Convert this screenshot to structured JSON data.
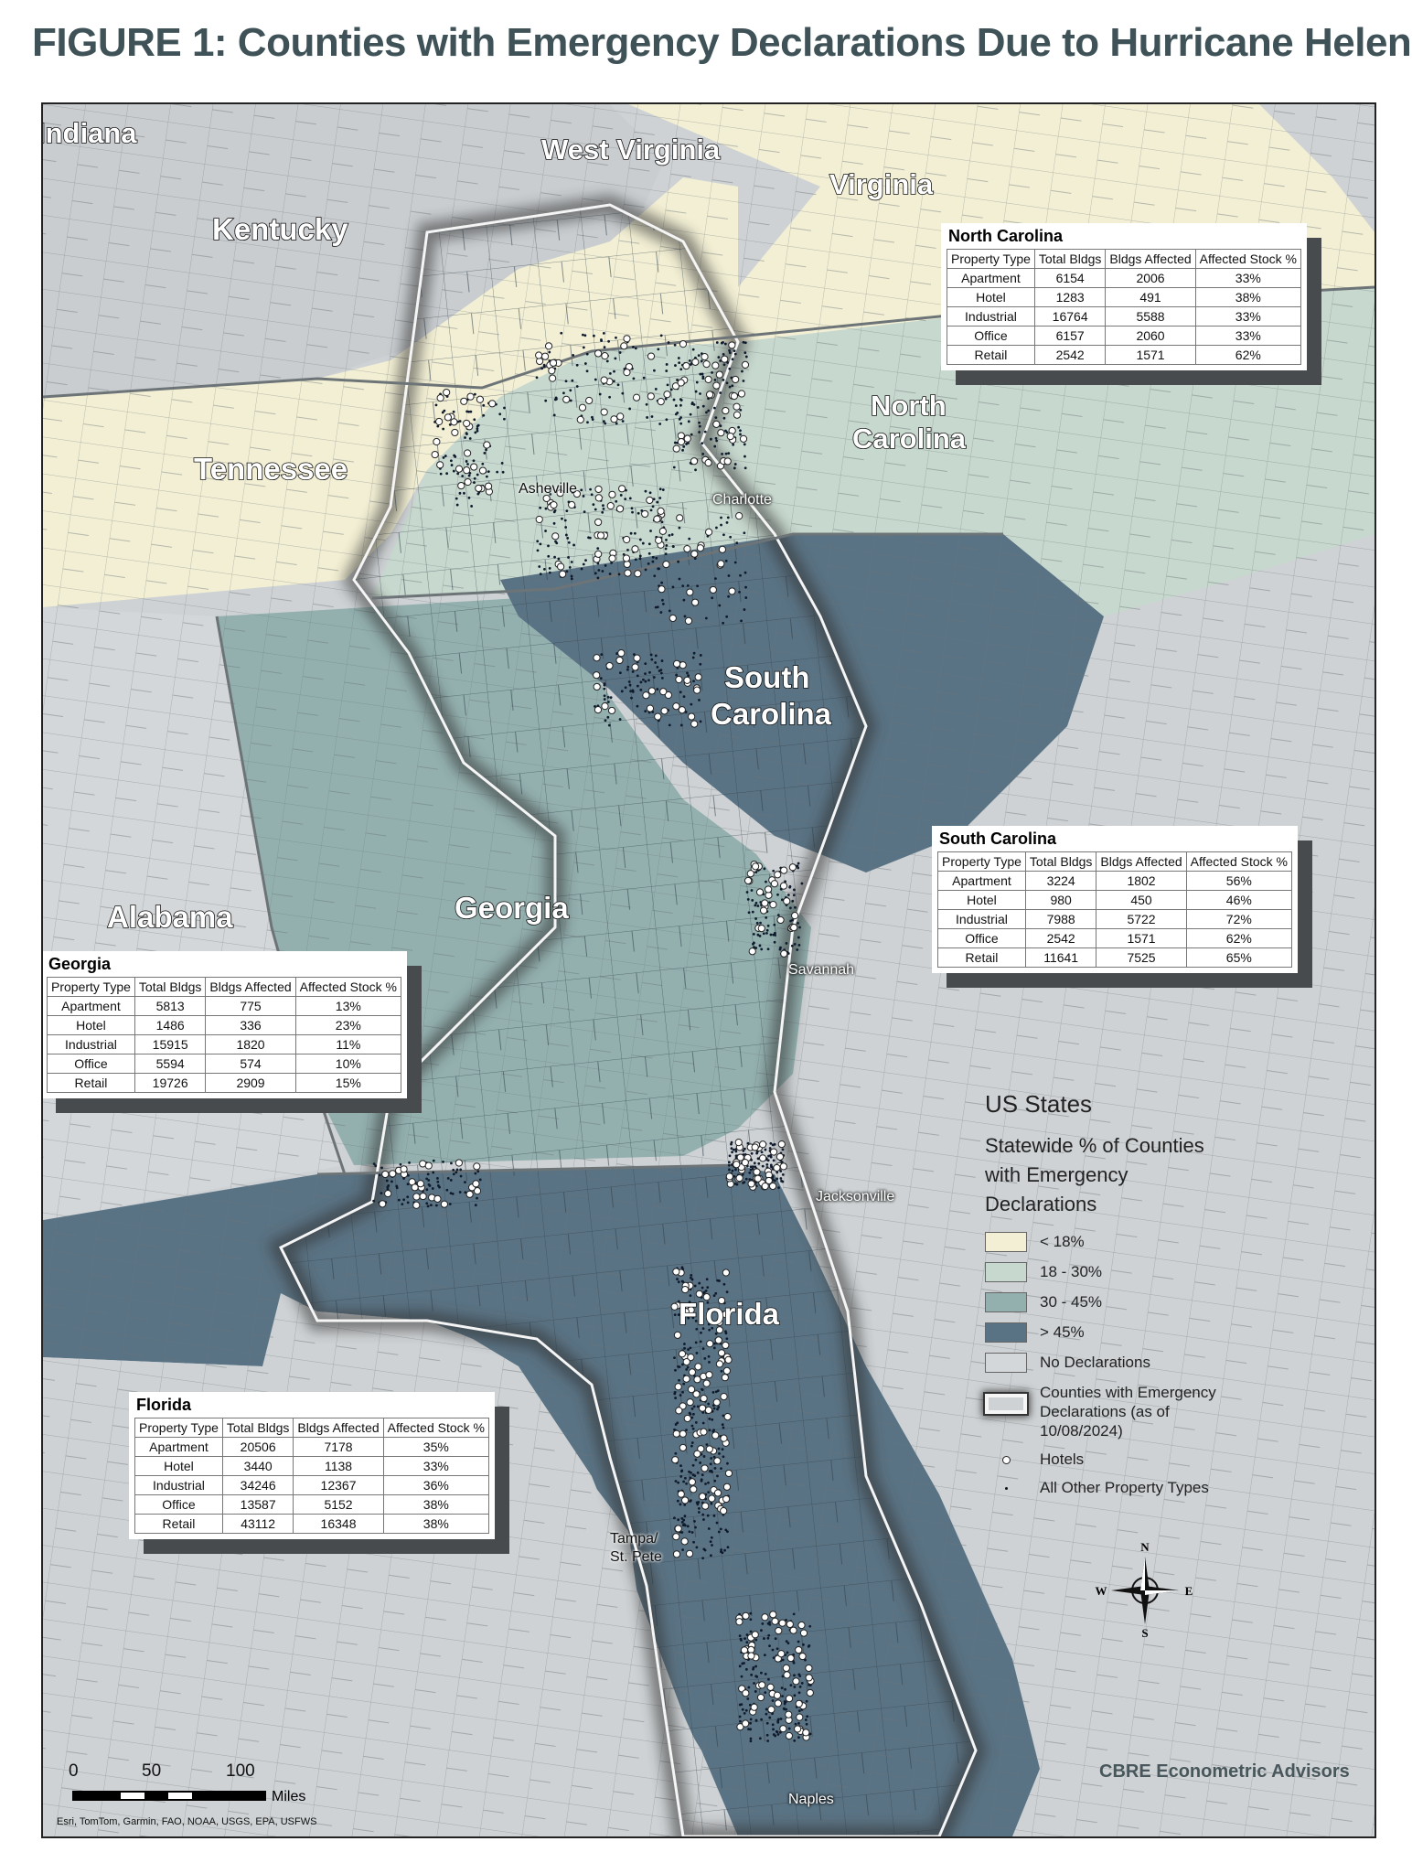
{
  "title": "FIGURE 1: Counties with Emergency Declarations Due to Hurricane Helene",
  "colors": {
    "lt18": "#f2efd4",
    "r18_30": "#c7d8ce",
    "r30_45": "#93b0af",
    "gt45": "#5a7384",
    "none": "#ced2d4",
    "water": "#ced2d4"
  },
  "state_labels": {
    "indiana": "Indiana",
    "west_virginia": "West Virginia",
    "virginia": "Virginia",
    "kentucky": "Kentucky",
    "tennessee": "Tennessee",
    "north_carolina_1": "North",
    "north_carolina_2": "Carolina",
    "south_carolina_1": "South",
    "south_carolina_2": "Carolina",
    "georgia": "Georgia",
    "alabama": "Alabama",
    "florida": "Florida"
  },
  "city_labels": {
    "asheville": "Asheville",
    "charlotte": "Charlotte",
    "savannah": "Savannah",
    "jacksonville": "Jacksonville",
    "tampa_1": "Tampa/",
    "tampa_2": "St. Pete",
    "naples": "Naples"
  },
  "tables": {
    "headers": [
      "Property Type",
      "Total Bldgs",
      "Bldgs Affected",
      "Affected Stock %"
    ],
    "north_carolina": {
      "name": "North Carolina",
      "rows": [
        [
          "Apartment",
          "6154",
          "2006",
          "33%"
        ],
        [
          "Hotel",
          "1283",
          "491",
          "38%"
        ],
        [
          "Industrial",
          "16764",
          "5588",
          "33%"
        ],
        [
          "Office",
          "6157",
          "2060",
          "33%"
        ],
        [
          "Retail",
          "2542",
          "1571",
          "62%"
        ]
      ]
    },
    "south_carolina": {
      "name": "South Carolina",
      "rows": [
        [
          "Apartment",
          "3224",
          "1802",
          "56%"
        ],
        [
          "Hotel",
          "980",
          "450",
          "46%"
        ],
        [
          "Industrial",
          "7988",
          "5722",
          "72%"
        ],
        [
          "Office",
          "2542",
          "1571",
          "62%"
        ],
        [
          "Retail",
          "11641",
          "7525",
          "65%"
        ]
      ]
    },
    "georgia": {
      "name": "Georgia",
      "rows": [
        [
          "Apartment",
          "5813",
          "775",
          "13%"
        ],
        [
          "Hotel",
          "1486",
          "336",
          "23%"
        ],
        [
          "Industrial",
          "15915",
          "1820",
          "11%"
        ],
        [
          "Office",
          "5594",
          "574",
          "10%"
        ],
        [
          "Retail",
          "19726",
          "2909",
          "15%"
        ]
      ]
    },
    "florida": {
      "name": "Florida",
      "rows": [
        [
          "Apartment",
          "20506",
          "7178",
          "35%"
        ],
        [
          "Hotel",
          "3440",
          "1138",
          "33%"
        ],
        [
          "Industrial",
          "34246",
          "12367",
          "36%"
        ],
        [
          "Office",
          "13587",
          "5152",
          "38%"
        ],
        [
          "Retail",
          "43112",
          "16348",
          "38%"
        ]
      ]
    }
  },
  "legend": {
    "title": "US States",
    "subtitle_1": "Statewide % of Counties",
    "subtitle_2": "with Emergency",
    "subtitle_3": "Declarations",
    "items": [
      "< 18%",
      "18 - 30%",
      "30 - 45%",
      "> 45%",
      "No Declarations"
    ],
    "outline_1": "Counties with Emergency",
    "outline_2": "Declarations (as of",
    "outline_3": "10/08/2024)",
    "hotels": "Hotels",
    "other": "All Other Property Types"
  },
  "scale": {
    "ticks": [
      "0",
      "50",
      "100"
    ],
    "unit": "Miles"
  },
  "compass": {
    "n": "N",
    "s": "S",
    "e": "E",
    "w": "W"
  },
  "credit": "Esri, TomTom, Garmin, FAO, NOAA, USGS, EPA, USFWS",
  "brand": "CBRE Econometric Advisors"
}
